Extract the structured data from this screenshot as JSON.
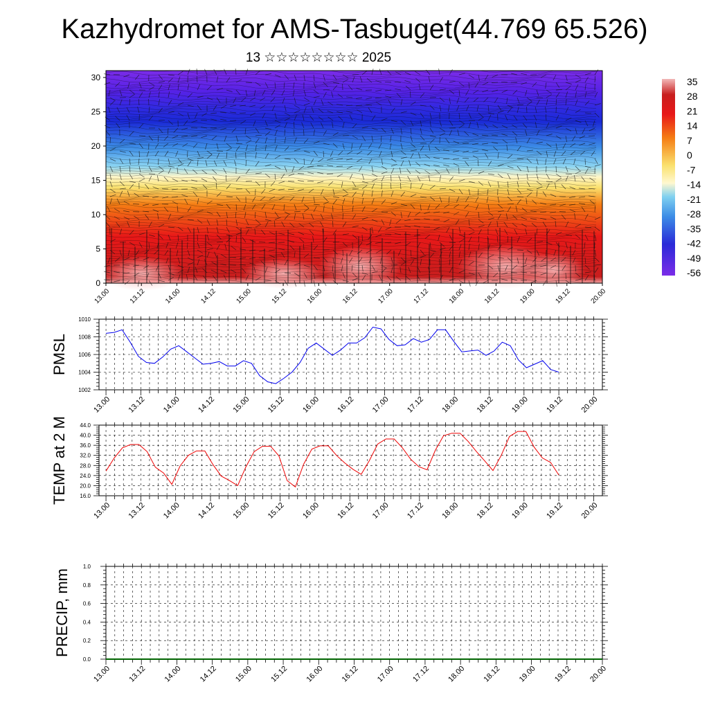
{
  "page": {
    "title": "Kazhydromet for AMS-Tasbuget(44.769 65.526)",
    "subtitle": "13 ☆☆☆☆☆☆☆☆ 2025"
  },
  "x_ticks": [
    "13.00",
    "13.12",
    "14.00",
    "14.12",
    "15.00",
    "15.12",
    "16.00",
    "16.12",
    "17.00",
    "17.12",
    "18.00",
    "18.12",
    "19.00",
    "19.12",
    "20.00"
  ],
  "colors": {
    "pmsl_line": "#0000ee",
    "temp_line": "#ee0000",
    "precip_line": "#006400"
  },
  "chart_data": [
    {
      "type": "heatmap",
      "name": "cross-section",
      "x_ticks": [
        "13.00",
        "13.12",
        "14.00",
        "14.12",
        "15.00",
        "15.12",
        "16.00",
        "16.12",
        "17.00",
        "17.12",
        "18.00",
        "18.12",
        "19.00",
        "19.12",
        "20.00"
      ],
      "y_ticks": [
        "0",
        "5",
        "10",
        "15",
        "20",
        "25",
        "30"
      ],
      "ylim": [
        0,
        31
      ],
      "colorbar": {
        "labels": [
          "35",
          "28",
          "21",
          "14",
          "7",
          "0",
          "-7",
          "-14",
          "-21",
          "-28",
          "-35",
          "-42",
          "-49",
          "-56"
        ],
        "range": [
          -63,
          38
        ]
      },
      "wind_vectors": true
    },
    {
      "type": "line",
      "name": "pmsl",
      "ylabel": "PMSL",
      "y_ticks": [
        "1010",
        "1008",
        "1006",
        "1004",
        "1002"
      ],
      "ylim": [
        1002,
        1010
      ],
      "x_ticks": [
        "13.00",
        "13.12",
        "14.00",
        "14.12",
        "15.00",
        "15.12",
        "16.00",
        "16.12",
        "17.00",
        "17.12",
        "18.00",
        "18.12",
        "19.00",
        "19.12",
        "20.00"
      ],
      "grid": true,
      "values": [
        1008.4,
        1008.5,
        1008.8,
        1007.4,
        1005.8,
        1005.1,
        1005.0,
        1005.7,
        1006.6,
        1007.0,
        1006.3,
        1005.6,
        1004.9,
        1005.0,
        1005.2,
        1004.7,
        1004.7,
        1005.3,
        1005.0,
        1003.6,
        1002.9,
        1002.7,
        1003.3,
        1004.0,
        1005.1,
        1006.7,
        1007.3,
        1006.6,
        1005.9,
        1006.5,
        1007.3,
        1007.3,
        1007.9,
        1009.1,
        1008.9,
        1007.7,
        1007.0,
        1007.1,
        1007.8,
        1007.4,
        1007.7,
        1008.8,
        1008.8,
        1007.5,
        1006.3,
        1006.4,
        1006.5,
        1005.9,
        1006.4,
        1007.4,
        1007.0,
        1005.4,
        1004.5,
        1004.9,
        1005.3,
        1004.3,
        1004.0
      ]
    },
    {
      "type": "line",
      "name": "temp",
      "ylabel": "TEMP at 2 M",
      "y_ticks": [
        "44.0",
        "40.0",
        "36.0",
        "32.0",
        "28.0",
        "24.0",
        "20.0",
        "16.0"
      ],
      "ylim": [
        16,
        44
      ],
      "x_ticks": [
        "13.00",
        "13.12",
        "14.00",
        "14.12",
        "15.00",
        "15.12",
        "16.00",
        "16.12",
        "17.00",
        "17.12",
        "18.00",
        "18.12",
        "19.00",
        "19.12",
        "20.00"
      ],
      "grid": true,
      "values": [
        25.8,
        31.0,
        35.0,
        36.3,
        36.3,
        33.5,
        27.3,
        25.0,
        20.5,
        27.8,
        32.0,
        33.8,
        33.8,
        28.3,
        23.8,
        22.0,
        20.0,
        27.5,
        33.5,
        35.6,
        35.6,
        31.8,
        22.0,
        19.5,
        28.5,
        34.5,
        35.8,
        35.8,
        32.0,
        29.0,
        26.5,
        24.5,
        30.0,
        36.5,
        38.5,
        38.5,
        35.0,
        30.5,
        27.5,
        26.3,
        34.0,
        39.8,
        40.8,
        40.8,
        37.5,
        33.5,
        29.8,
        26.0,
        32.0,
        39.5,
        41.5,
        41.5,
        35.3,
        31.0,
        29.2,
        24.2
      ]
    },
    {
      "type": "line",
      "name": "precip",
      "ylabel": "PRECIP, mm",
      "y_ticks": [
        "1.0",
        "0.8",
        "0.6",
        "0.4",
        "0.2",
        "0.0"
      ],
      "ylim": [
        0,
        1
      ],
      "x_ticks": [
        "13.00",
        "13.12",
        "14.00",
        "14.12",
        "15.00",
        "15.12",
        "16.00",
        "16.12",
        "17.00",
        "17.12",
        "18.00",
        "18.12",
        "19.00",
        "19.12",
        "20.00"
      ],
      "grid": true,
      "values": [
        0,
        0,
        0,
        0,
        0,
        0,
        0,
        0,
        0,
        0,
        0,
        0,
        0,
        0,
        0
      ]
    }
  ]
}
